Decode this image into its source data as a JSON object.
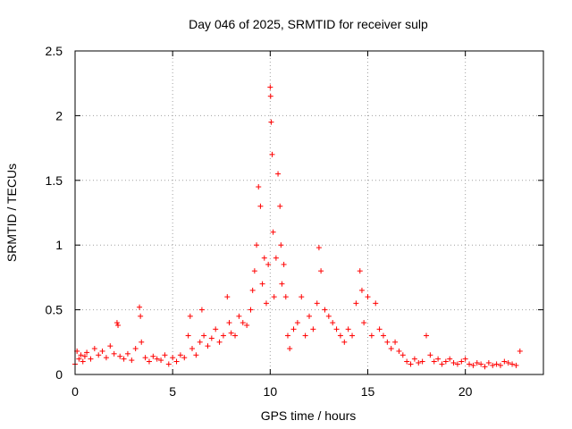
{
  "chart_data": {
    "type": "scatter",
    "title": "Day 046 of 2025, SRMTID for receiver sulp",
    "xlabel": "GPS time / hours",
    "ylabel": "SRMTID / TECUs",
    "xlim": [
      0,
      24
    ],
    "ylim": [
      0,
      2.5
    ],
    "x_ticks": [
      0,
      5,
      10,
      15,
      20
    ],
    "x_tick_labels": [
      "0",
      "5",
      "10",
      "15",
      "20"
    ],
    "y_ticks": [
      0,
      0.5,
      1,
      1.5,
      2,
      2.5
    ],
    "y_tick_labels": [
      "0",
      "0.5",
      "1",
      "1.5",
      "2",
      "2.5"
    ],
    "grid": true,
    "marker": "+",
    "color": "#ff0000",
    "series": [
      {
        "name": "SRMTID",
        "x": [
          0.0,
          0.1,
          0.2,
          0.3,
          0.4,
          0.5,
          0.6,
          0.8,
          1.0,
          1.2,
          1.4,
          1.6,
          1.8,
          2.0,
          2.15,
          2.2,
          2.3,
          2.5,
          2.7,
          2.9,
          3.1,
          3.3,
          3.35,
          3.4,
          3.6,
          3.8,
          4.0,
          4.2,
          4.4,
          4.6,
          4.8,
          5.0,
          5.2,
          5.4,
          5.6,
          5.8,
          5.9,
          6.0,
          6.2,
          6.4,
          6.5,
          6.6,
          6.8,
          7.0,
          7.2,
          7.4,
          7.6,
          7.8,
          7.9,
          8.0,
          8.2,
          8.4,
          8.6,
          8.8,
          9.0,
          9.1,
          9.2,
          9.3,
          9.4,
          9.5,
          9.6,
          9.7,
          9.8,
          9.9,
          10.0,
          10.02,
          10.05,
          10.1,
          10.15,
          10.2,
          10.3,
          10.4,
          10.5,
          10.55,
          10.6,
          10.7,
          10.8,
          10.9,
          11.0,
          11.2,
          11.4,
          11.6,
          11.8,
          12.0,
          12.2,
          12.4,
          12.5,
          12.6,
          12.8,
          13.0,
          13.2,
          13.4,
          13.6,
          13.8,
          14.0,
          14.2,
          14.4,
          14.6,
          14.7,
          14.8,
          15.0,
          15.2,
          15.4,
          15.6,
          15.8,
          16.0,
          16.2,
          16.4,
          16.6,
          16.8,
          17.0,
          17.2,
          17.4,
          17.6,
          17.8,
          18.0,
          18.2,
          18.4,
          18.6,
          18.8,
          19.0,
          19.2,
          19.4,
          19.6,
          19.8,
          20.0,
          20.2,
          20.4,
          20.6,
          20.8,
          21.0,
          21.2,
          21.4,
          21.6,
          21.8,
          22.0,
          22.2,
          22.4,
          22.6,
          22.8
        ],
        "y": [
          0.08,
          0.18,
          0.12,
          0.15,
          0.1,
          0.14,
          0.17,
          0.12,
          0.2,
          0.15,
          0.18,
          0.13,
          0.22,
          0.16,
          0.4,
          0.38,
          0.14,
          0.12,
          0.16,
          0.11,
          0.2,
          0.52,
          0.45,
          0.25,
          0.13,
          0.1,
          0.14,
          0.12,
          0.11,
          0.15,
          0.08,
          0.13,
          0.1,
          0.15,
          0.13,
          0.3,
          0.45,
          0.2,
          0.15,
          0.25,
          0.5,
          0.3,
          0.22,
          0.28,
          0.35,
          0.25,
          0.3,
          0.6,
          0.4,
          0.32,
          0.3,
          0.45,
          0.4,
          0.38,
          0.5,
          0.65,
          0.8,
          1.0,
          1.45,
          1.3,
          0.7,
          0.9,
          0.55,
          0.85,
          2.22,
          2.15,
          1.95,
          1.7,
          1.1,
          0.6,
          0.9,
          1.55,
          1.3,
          1.0,
          0.7,
          0.85,
          0.6,
          0.3,
          0.2,
          0.35,
          0.4,
          0.6,
          0.3,
          0.45,
          0.35,
          0.55,
          0.98,
          0.8,
          0.5,
          0.45,
          0.4,
          0.35,
          0.3,
          0.25,
          0.35,
          0.3,
          0.55,
          0.8,
          0.65,
          0.4,
          0.6,
          0.3,
          0.55,
          0.35,
          0.3,
          0.25,
          0.2,
          0.25,
          0.18,
          0.15,
          0.1,
          0.08,
          0.12,
          0.09,
          0.1,
          0.3,
          0.15,
          0.1,
          0.12,
          0.08,
          0.1,
          0.12,
          0.09,
          0.08,
          0.1,
          0.12,
          0.08,
          0.07,
          0.09,
          0.08,
          0.06,
          0.09,
          0.07,
          0.08,
          0.07,
          0.1,
          0.09,
          0.08,
          0.07,
          0.18
        ]
      }
    ]
  }
}
